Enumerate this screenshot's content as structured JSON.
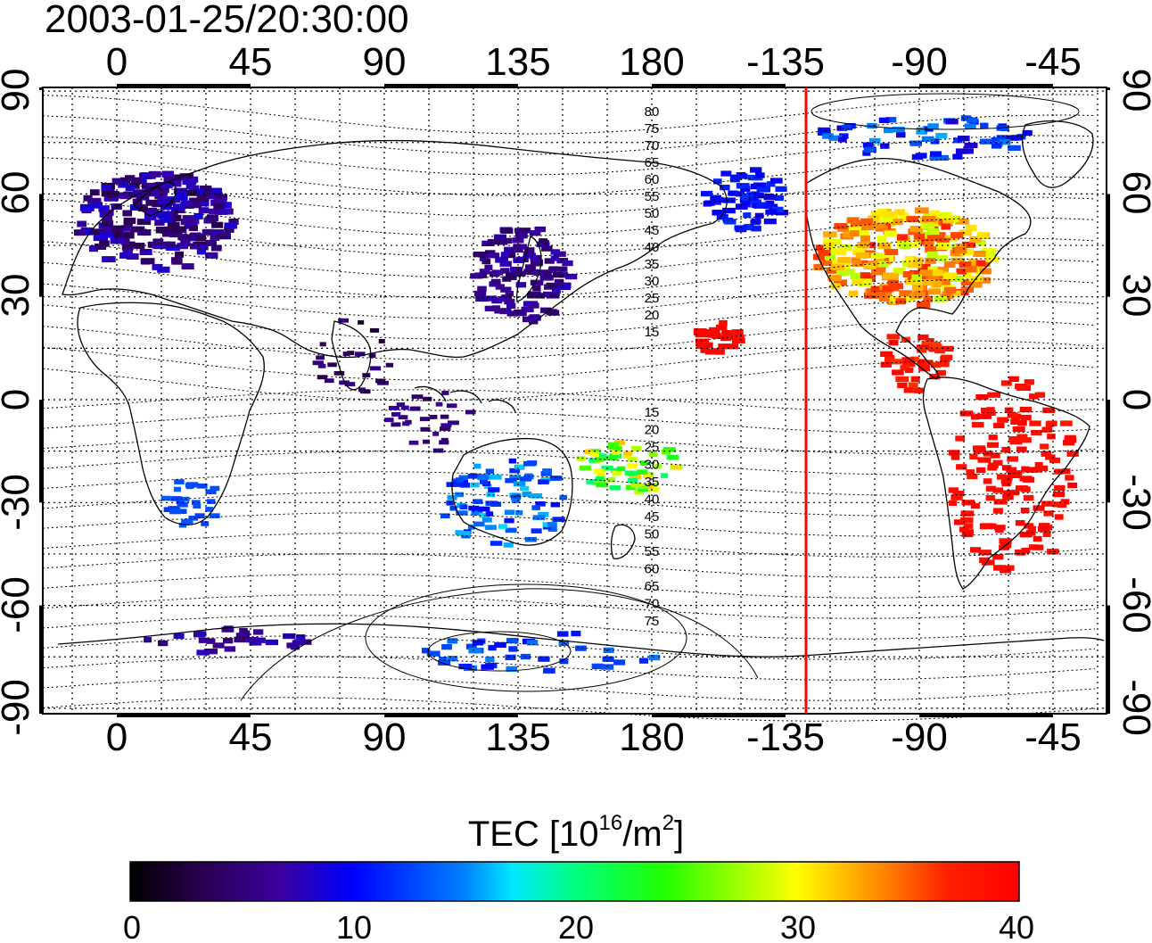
{
  "title": "2003-01-25/20:30:00",
  "map": {
    "lon_ticks_top": [
      "0",
      "45",
      "90",
      "135",
      "180",
      "-135",
      "-90",
      "-45"
    ],
    "lon_ticks_bottom": [
      "0",
      "45",
      "90",
      "135",
      "180",
      "-135",
      "-90",
      "-45"
    ],
    "lat_ticks_left": [
      "90",
      "60",
      "30",
      "0",
      "-30",
      "-60",
      "-90"
    ],
    "lat_ticks_right": [
      "90",
      "60",
      "30",
      "0",
      "-30",
      "-60",
      "-90"
    ],
    "contour_labels_north": [
      "80",
      "75",
      "70",
      "65",
      "60",
      "55",
      "50",
      "45",
      "40",
      "35",
      "30",
      "25",
      "20",
      "15"
    ],
    "contour_labels_south": [
      "15",
      "20",
      "25",
      "30",
      "35",
      "40",
      "45",
      "50",
      "55",
      "60",
      "65",
      "70",
      "75"
    ],
    "terminator_line_color": "#ff0000",
    "terminator_longitude": -133
  },
  "colorbar": {
    "label_main": "TEC  [10",
    "label_sup1": "16",
    "label_mid": "/m",
    "label_sup2": "2",
    "label_end": "]",
    "ticks": [
      "0",
      "10",
      "20",
      "30",
      "40"
    ],
    "range": [
      0,
      40
    ]
  }
}
